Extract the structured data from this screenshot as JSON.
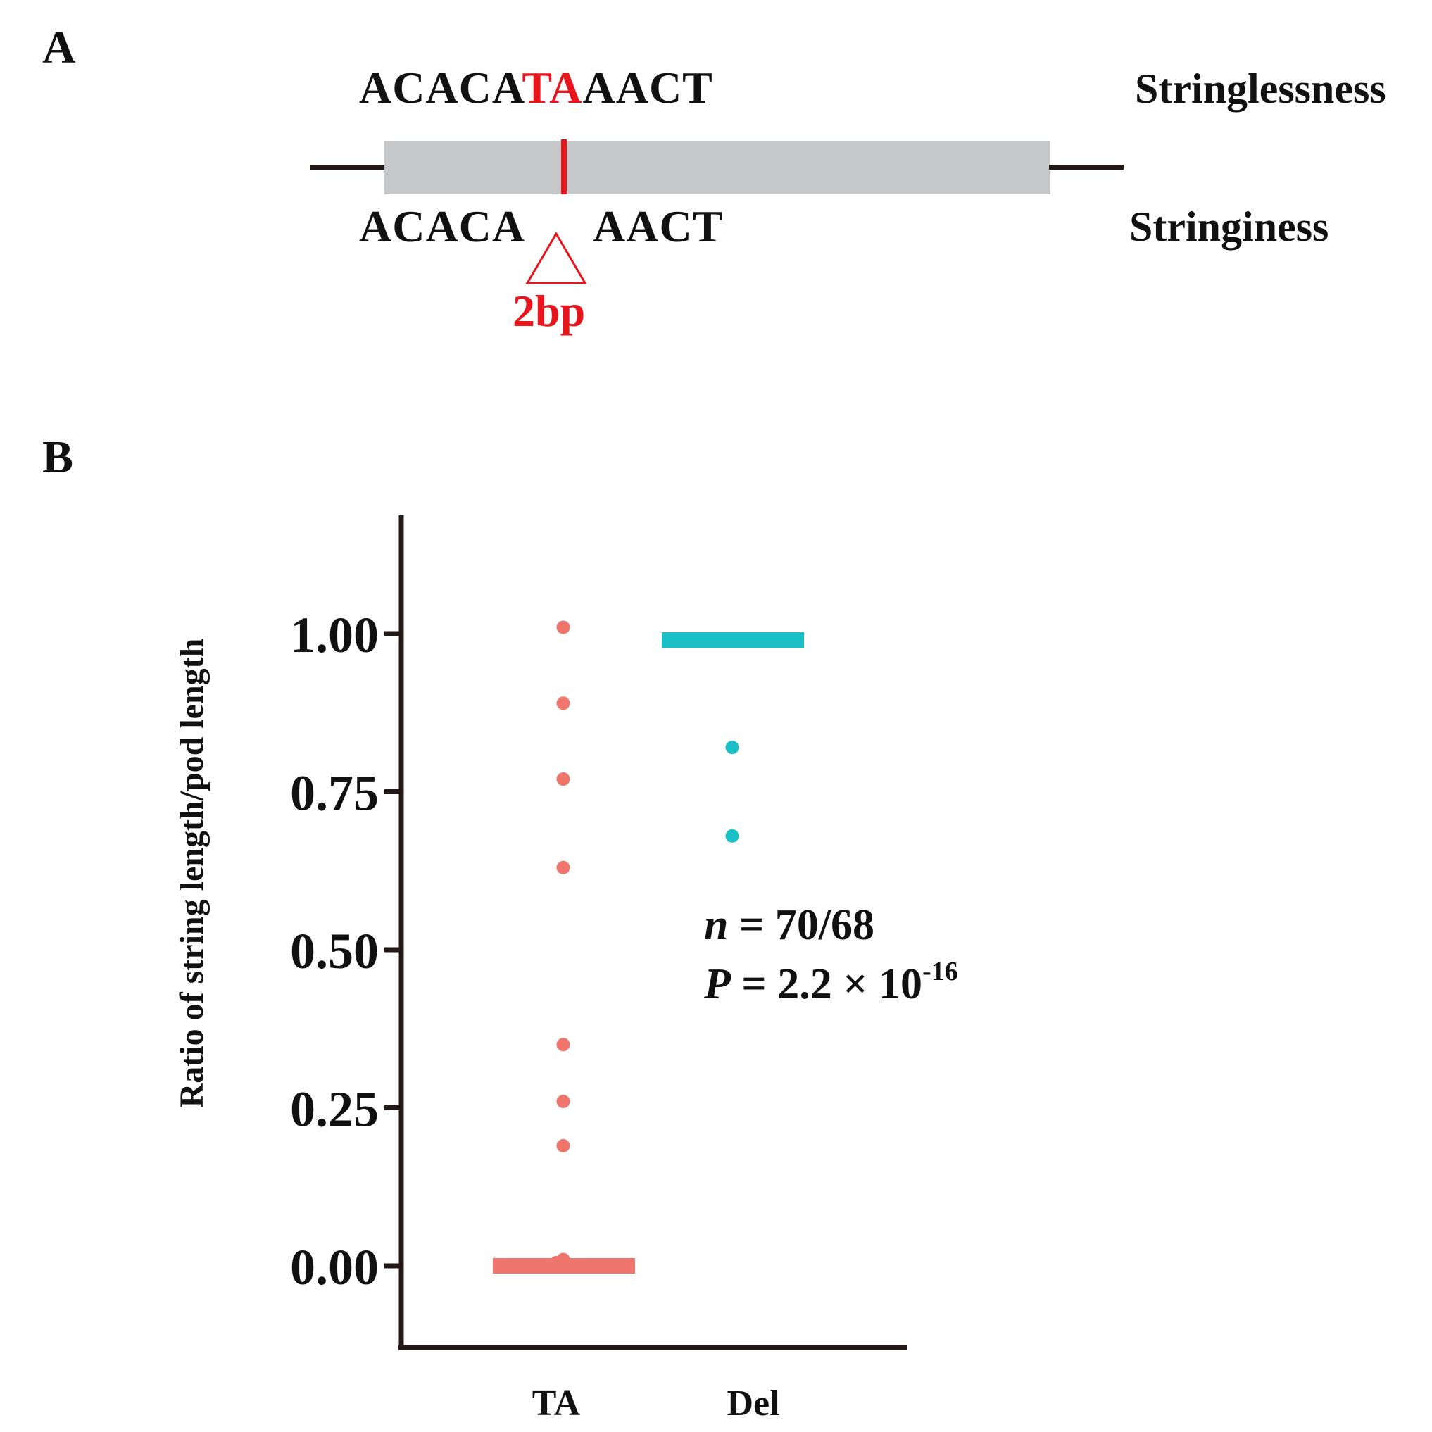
{
  "panel_a": {
    "label": "A",
    "wt_seq": {
      "prefix": "ACACA",
      "highlight": "TA",
      "suffix": "AACT"
    },
    "wt_label": "Stringlessness",
    "mut_seq": {
      "left": "ACACA",
      "right": "AACT"
    },
    "mut_label": "Stringiness",
    "deletion_size": "2bp",
    "colors": {
      "highlight": "#e8141b",
      "gene_box": "#c6c7c9",
      "line": "#231815"
    }
  },
  "panel_b": {
    "label": "B",
    "annotation": {
      "n_var": "n",
      "n_text": " = 70/68",
      "p_var": "P",
      "p_text": " = 2.2 × 10",
      "p_exp": "-16"
    }
  },
  "chart_data": {
    "type": "scatter",
    "categories": [
      "TA",
      "Del"
    ],
    "ylabel": "Ratio of  string length/pod length",
    "xlabel": "",
    "ylim": [
      -0.13,
      1.18
    ],
    "yticks": [
      0.0,
      0.25,
      0.5,
      0.75,
      1.0
    ],
    "ytick_labels": [
      "0.00",
      "0.25",
      "0.50",
      "0.75",
      "1.00"
    ],
    "series": [
      {
        "name": "TA",
        "color": "#f0766d",
        "points": [
          1.01,
          0.89,
          0.77,
          0.63,
          0.35,
          0.26,
          0.19,
          0.01,
          0.005
        ],
        "median": 0.0
      },
      {
        "name": "Del",
        "color": "#19bfc4",
        "points": [
          0.82,
          0.68
        ],
        "median": 0.99
      }
    ]
  }
}
